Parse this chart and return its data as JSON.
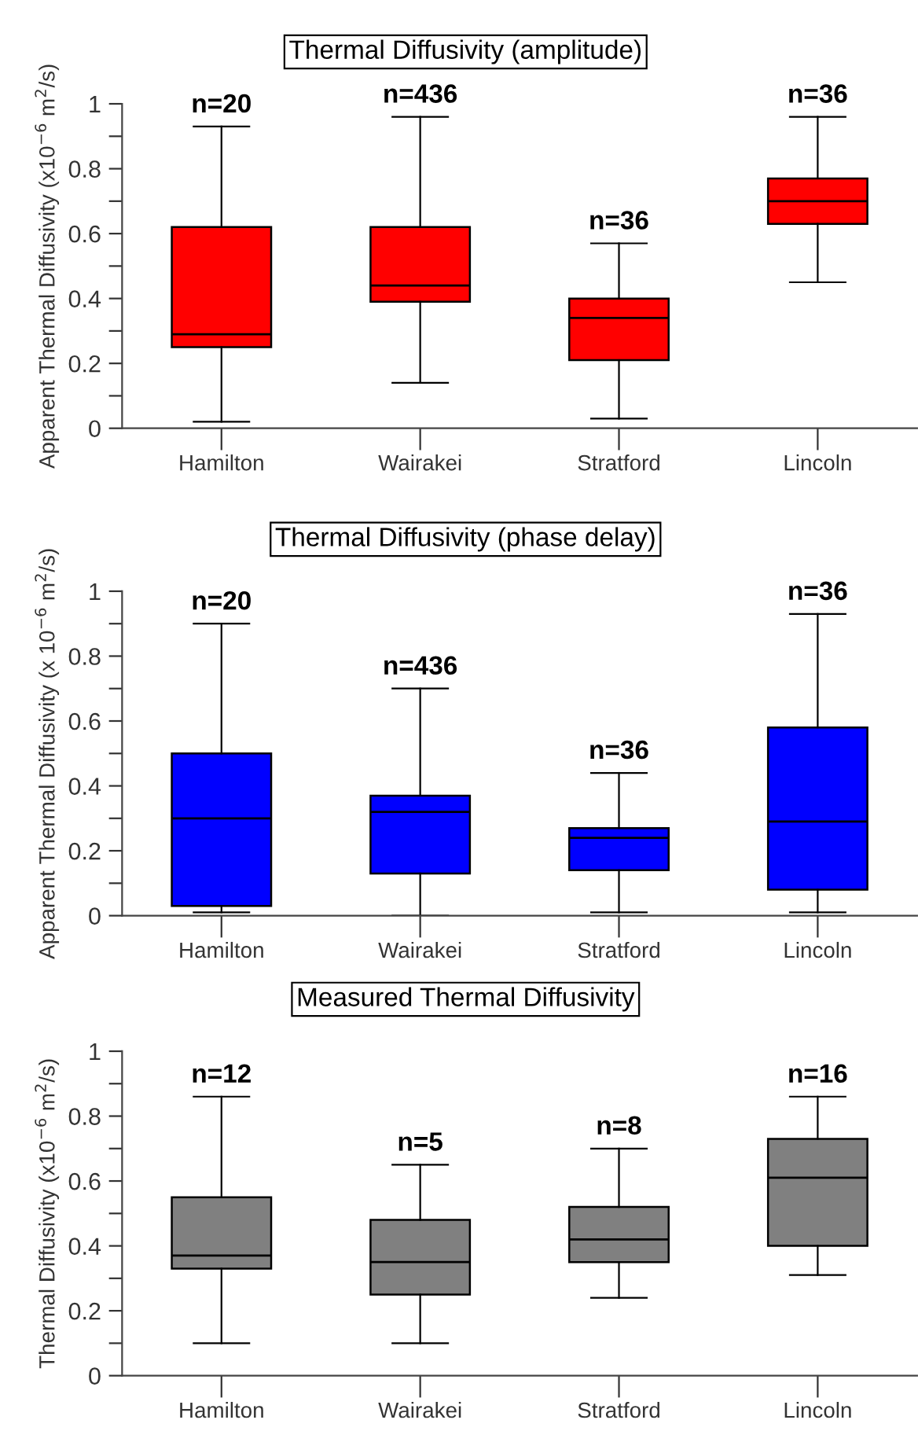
{
  "chart_data": [
    {
      "type": "box",
      "title": "Thermal Diffusivity (amplitude)",
      "ylabel": "Apparent Thermal Diffusivity (x10$^{−6}$ m$^{2}$/s)",
      "categories": [
        "Hamilton",
        "Wairakei",
        "Stratford",
        "Lincoln"
      ],
      "series": [
        {
          "color": "#ff0000",
          "boxes": [
            {
              "low": 0.02,
              "q1": 0.25,
              "median": 0.29,
              "q3": 0.62,
              "high": 0.93
            },
            {
              "low": 0.14,
              "q1": 0.39,
              "median": 0.44,
              "q3": 0.62,
              "high": 0.96
            },
            {
              "low": 0.03,
              "q1": 0.21,
              "median": 0.34,
              "q3": 0.4,
              "high": 0.57
            },
            {
              "low": 0.45,
              "q1": 0.63,
              "median": 0.7,
              "q3": 0.77,
              "high": 0.96
            }
          ]
        }
      ],
      "ylim": [
        0,
        1
      ],
      "yticks": [
        0,
        {
          "value": 0.1,
          "label": null
        },
        0.2,
        {
          "value": 0.3,
          "label": null
        },
        0.4,
        {
          "value": 0.5,
          "label": null
        },
        0.6,
        {
          "value": 0.7,
          "label": null
        },
        0.8,
        {
          "value": 0.9,
          "label": null
        },
        1
      ],
      "grid": false,
      "legend": false,
      "annotations": [
        {
          "text": "n=20",
          "x": "Hamilton",
          "y": 0.93
        },
        {
          "text": "n=436",
          "x": "Wairakei",
          "y": 0.96
        },
        {
          "text": "n=36",
          "x": "Stratford",
          "y": 0.57
        },
        {
          "text": "n=36",
          "x": "Lincoln",
          "y": 0.96
        }
      ]
    },
    {
      "type": "box",
      "title": "Thermal Diffusivity (phase delay)",
      "ylabel": "Apparent Thermal Diffusivity (x 10$^{−6}$ m$^{2}$/s)",
      "categories": [
        "Hamilton",
        "Wairakei",
        "Stratford",
        "Lincoln"
      ],
      "series": [
        {
          "color": "#0000ff",
          "boxes": [
            {
              "low": 0.01,
              "q1": 0.03,
              "median": 0.3,
              "q3": 0.5,
              "high": 0.9
            },
            {
              "low": 0.0,
              "q1": 0.13,
              "median": 0.32,
              "q3": 0.37,
              "high": 0.7
            },
            {
              "low": 0.01,
              "q1": 0.14,
              "median": 0.24,
              "q3": 0.27,
              "high": 0.44
            },
            {
              "low": 0.01,
              "q1": 0.08,
              "median": 0.29,
              "q3": 0.58,
              "high": 0.93
            }
          ]
        }
      ],
      "ylim": [
        0,
        1
      ],
      "yticks": [
        0,
        {
          "value": 0.1,
          "label": null
        },
        0.2,
        {
          "value": 0.3,
          "label": null
        },
        0.4,
        {
          "value": 0.5,
          "label": null
        },
        0.6,
        {
          "value": 0.7,
          "label": null
        },
        0.8,
        {
          "value": 0.9,
          "label": null
        },
        1
      ],
      "grid": false,
      "legend": false,
      "annotations": [
        {
          "text": "n=20",
          "x": "Hamilton",
          "y": 0.9
        },
        {
          "text": "n=436",
          "x": "Wairakei",
          "y": 0.7
        },
        {
          "text": "n=36",
          "x": "Stratford",
          "y": 0.44
        },
        {
          "text": "n=36",
          "x": "Lincoln",
          "y": 0.93
        }
      ]
    },
    {
      "type": "box",
      "title": "Measured Thermal Diffusivity",
      "ylabel": "Thermal Diffusivity (x10$^{−6}$ m$^{2}$/s)",
      "categories": [
        "Hamilton",
        "Wairakei",
        "Stratford",
        "Lincoln"
      ],
      "series": [
        {
          "color": "#808080",
          "boxes": [
            {
              "low": 0.1,
              "q1": 0.33,
              "median": 0.37,
              "q3": 0.55,
              "high": 0.86
            },
            {
              "low": 0.1,
              "q1": 0.25,
              "median": 0.35,
              "q3": 0.48,
              "high": 0.65
            },
            {
              "low": 0.24,
              "q1": 0.35,
              "median": 0.42,
              "q3": 0.52,
              "high": 0.7
            },
            {
              "low": 0.31,
              "q1": 0.4,
              "median": 0.61,
              "q3": 0.73,
              "high": 0.86
            }
          ]
        }
      ],
      "ylim": [
        0,
        1
      ],
      "yticks": [
        0,
        {
          "value": 0.1,
          "label": null
        },
        0.2,
        {
          "value": 0.3,
          "label": null
        },
        0.4,
        {
          "value": 0.5,
          "label": null
        },
        0.6,
        {
          "value": 0.7,
          "label": null
        },
        0.8,
        {
          "value": 0.9,
          "label": null
        },
        1
      ],
      "grid": false,
      "legend": false,
      "annotations": [
        {
          "text": "n=12",
          "x": "Hamilton",
          "y": 0.86
        },
        {
          "text": "n=5",
          "x": "Wairakei",
          "y": 0.65
        },
        {
          "text": "n=8",
          "x": "Stratford",
          "y": 0.7
        },
        {
          "text": "n=16",
          "x": "Lincoln",
          "y": 0.86
        }
      ]
    }
  ]
}
